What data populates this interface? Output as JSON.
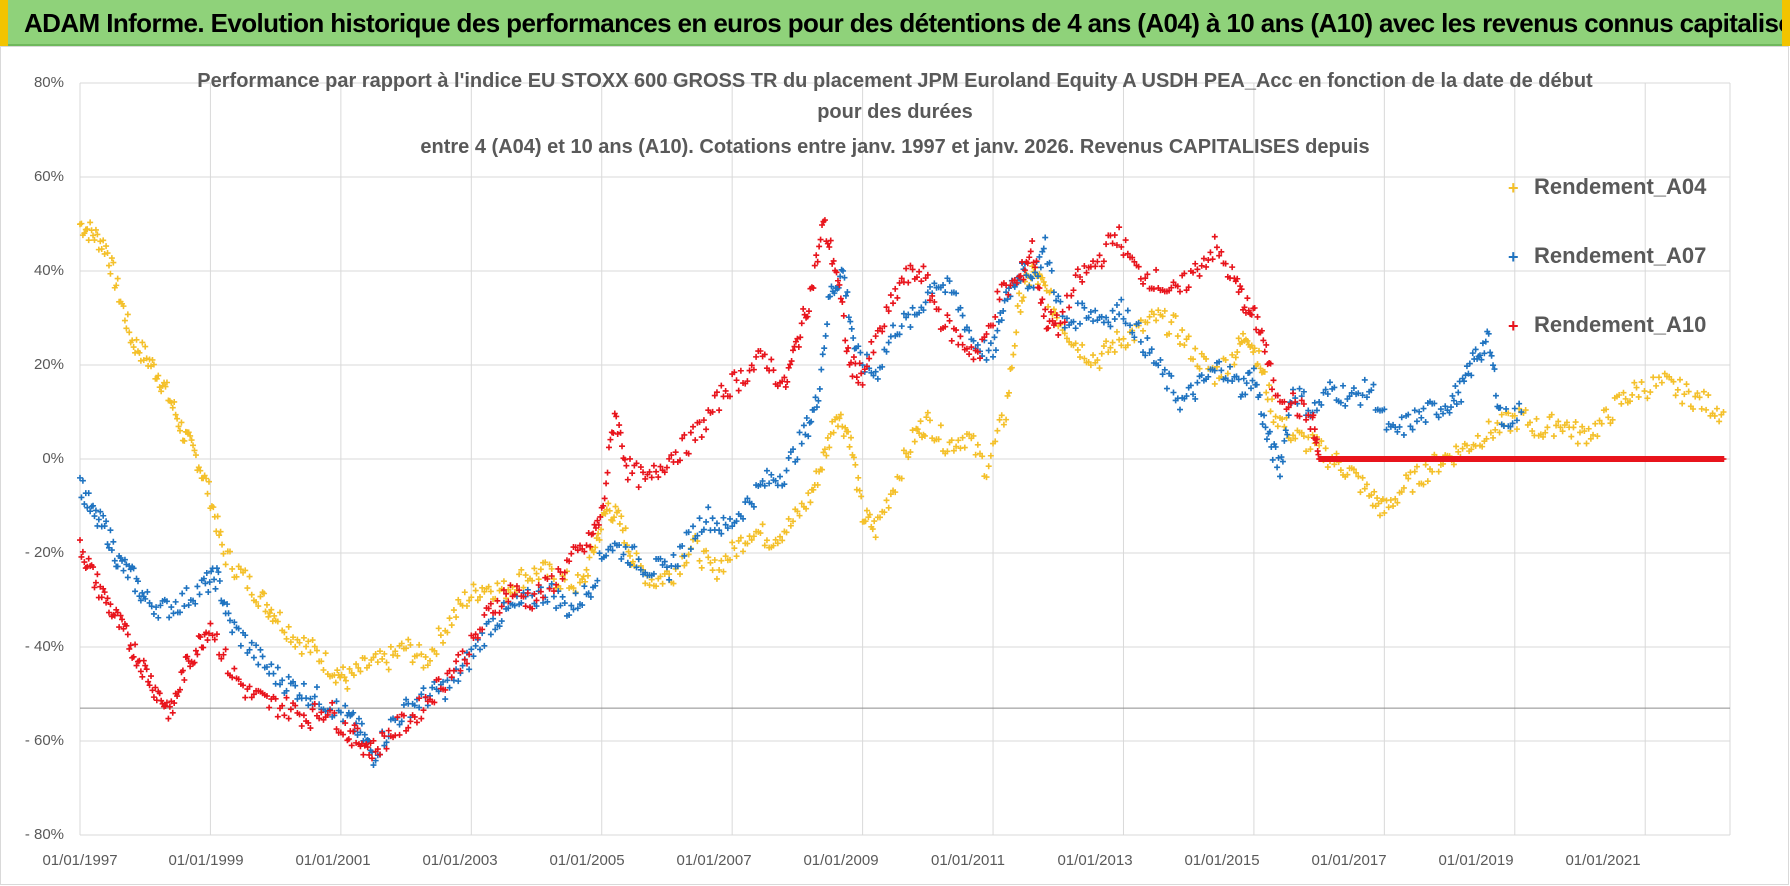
{
  "banner": {
    "title": "ADAM Informe. Evolution historique des performances en euros pour des détentions de 4 ans (A04) à 10 ans (A10) avec les revenus connus capitalisés"
  },
  "chart_data": {
    "type": "scatter",
    "title_lines": [
      "Performance par rapport à l'indice EU STOXX 600 GROSS TR  du placement JPM Euroland Equity A USDH PEA_Acc en fonction de la date de début",
      "pour des durées",
      "entre 4 (A04) et 10 ans (A10).  Cotations entre janv. 1997 et janv. 2026. Revenus CAPITALISES depuis"
    ],
    "xlabel": "",
    "ylabel": "",
    "x_ticks": [
      "01/01/1997",
      "01/01/1999",
      "01/01/2001",
      "01/01/2003",
      "01/01/2005",
      "01/01/2007",
      "01/01/2009",
      "01/01/2011",
      "01/01/2013",
      "01/01/2015",
      "01/01/2017",
      "01/01/2019",
      "01/01/2021"
    ],
    "xlim": [
      1997.0,
      2022.3
    ],
    "y_ticks": [
      "80%",
      "60%",
      "40%",
      "20%",
      "0%",
      "- 20%",
      "- 40%",
      "- 60%",
      "- 80%"
    ],
    "ylim": [
      -80,
      80
    ],
    "grid": true,
    "legend_position": "top-right",
    "series": [
      {
        "name": "Rendement_A04",
        "color": "#f4c02a",
        "marker": "+",
        "x": [
          1997.0,
          1997.2,
          1997.4,
          1997.6,
          1997.8,
          1998.0,
          1998.2,
          1998.4,
          1998.6,
          1998.8,
          1999.0,
          1999.2,
          1999.5,
          1999.8,
          2000.0,
          2000.3,
          2000.6,
          2000.9,
          2001.1,
          2001.4,
          2001.7,
          2002.0,
          2002.3,
          2002.6,
          2002.9,
          2003.2,
          2003.5,
          2003.8,
          2004.1,
          2004.4,
          2004.7,
          2004.9,
          2005.1,
          2005.3,
          2005.5,
          2005.8,
          2006.1,
          2006.4,
          2006.7,
          2007.0,
          2007.3,
          2007.6,
          2007.9,
          2008.2,
          2008.4,
          2008.6,
          2008.8,
          2009.0,
          2009.2,
          2009.5,
          2009.8,
          2010.0,
          2010.3,
          2010.6,
          2010.9,
          2011.2,
          2011.4,
          2011.6,
          2011.8,
          2012.0,
          2012.3,
          2012.6,
          2012.9,
          2013.2,
          2013.5,
          2013.8,
          2014.1,
          2014.4,
          2014.7,
          2014.9,
          2015.1,
          2015.3,
          2015.6,
          2015.9,
          2016.2,
          2016.5,
          2016.8,
          2017.0,
          2017.3,
          2017.6,
          2017.9,
          2018.2,
          2018.5,
          2018.8,
          2019.1,
          2019.4,
          2019.7,
          2020.0,
          2020.3,
          2020.6,
          2020.9,
          2021.3,
          2021.6,
          2021.9,
          2022.2
        ],
        "y": [
          50,
          48,
          45,
          35,
          25,
          22,
          18,
          12,
          5,
          0,
          -8,
          -20,
          -25,
          -30,
          -33,
          -38,
          -41,
          -45,
          -47,
          -44,
          -43,
          -40,
          -43,
          -36,
          -30,
          -27,
          -28,
          -25,
          -24,
          -26,
          -27,
          -18,
          -10,
          -14,
          -22,
          -26,
          -24,
          -18,
          -24,
          -20,
          -15,
          -17,
          -14,
          -8,
          0,
          10,
          5,
          -12,
          -15,
          -5,
          5,
          8,
          3,
          5,
          -2,
          10,
          33,
          40,
          36,
          30,
          24,
          21,
          25,
          27,
          30,
          28,
          22,
          18,
          22,
          27,
          20,
          10,
          5,
          3,
          0,
          -3,
          -8,
          -11,
          -6,
          -3,
          0,
          2,
          5,
          7,
          9,
          6,
          8,
          5,
          7,
          12,
          15,
          16,
          14,
          12,
          10
        ]
      },
      {
        "name": "Rendement_A07",
        "color": "#1f73c0",
        "marker": "+",
        "x": [
          1997.0,
          1997.2,
          1997.4,
          1997.6,
          1997.8,
          1998.0,
          1998.3,
          1998.6,
          1998.9,
          1999.1,
          1999.3,
          1999.6,
          1999.9,
          2000.2,
          2000.5,
          2000.8,
          2001.1,
          2001.3,
          2001.5,
          2001.8,
          2002.1,
          2002.4,
          2002.7,
          2003.0,
          2003.3,
          2003.6,
          2003.9,
          2004.2,
          2004.5,
          2004.8,
          2005.1,
          2005.4,
          2005.7,
          2006.0,
          2006.3,
          2006.6,
          2006.9,
          2007.2,
          2007.5,
          2007.8,
          2008.1,
          2008.3,
          2008.5,
          2008.7,
          2008.9,
          2009.2,
          2009.5,
          2009.8,
          2010.1,
          2010.4,
          2010.7,
          2011.0,
          2011.2,
          2011.4,
          2011.6,
          2011.8,
          2012.1,
          2012.4,
          2012.7,
          2013.0,
          2013.3,
          2013.6,
          2013.9,
          2014.2,
          2014.5,
          2014.8,
          2015.0,
          2015.2,
          2015.4,
          2015.6,
          2015.9,
          2016.2,
          2016.5,
          2016.8,
          2017.1,
          2017.4,
          2017.7,
          2018.0,
          2018.2,
          2018.4,
          2018.6,
          2018.8,
          2019.1
        ],
        "y": [
          -5,
          -12,
          -15,
          -22,
          -25,
          -30,
          -32,
          -30,
          -27,
          -25,
          -35,
          -40,
          -45,
          -48,
          -50,
          -52,
          -55,
          -58,
          -63,
          -56,
          -52,
          -50,
          -48,
          -42,
          -35,
          -32,
          -30,
          -28,
          -32,
          -28,
          -18,
          -20,
          -23,
          -24,
          -18,
          -12,
          -15,
          -10,
          -5,
          -3,
          5,
          12,
          35,
          40,
          22,
          18,
          28,
          30,
          38,
          35,
          25,
          22,
          35,
          40,
          38,
          45,
          28,
          32,
          30,
          32,
          25,
          18,
          12,
          16,
          20,
          15,
          18,
          5,
          -2,
          15,
          10,
          15,
          13,
          15,
          5,
          8,
          10,
          12,
          15,
          22,
          25,
          8,
          10
        ]
      },
      {
        "name": "Rendement_A10",
        "color": "#e8141c",
        "marker": "+",
        "x": [
          1997.0,
          1997.2,
          1997.4,
          1997.6,
          1997.8,
          1998.0,
          1998.2,
          1998.4,
          1998.6,
          1998.8,
          1999.0,
          1999.3,
          1999.6,
          1999.9,
          2000.2,
          2000.5,
          2000.8,
          2001.1,
          2001.3,
          2001.5,
          2001.8,
          2002.1,
          2002.4,
          2002.7,
          2003.0,
          2003.3,
          2003.6,
          2003.9,
          2004.2,
          2004.5,
          2004.8,
          2005.0,
          2005.2,
          2005.4,
          2005.7,
          2006.0,
          2006.3,
          2006.6,
          2006.9,
          2007.2,
          2007.5,
          2007.8,
          2008.0,
          2008.2,
          2008.4,
          2008.6,
          2008.8,
          2009.0,
          2009.3,
          2009.6,
          2009.9,
          2010.2,
          2010.5,
          2010.8,
          2011.1,
          2011.4,
          2011.6,
          2011.8,
          2012.0,
          2012.3,
          2012.6,
          2012.9,
          2013.2,
          2013.5,
          2013.8,
          2014.1,
          2014.4,
          2014.7,
          2014.9,
          2015.1,
          2015.3,
          2015.6,
          2015.9,
          2016.0,
          2016.3,
          2016.7,
          2017.0,
          2017.4,
          2017.8,
          2018.2,
          2018.6,
          2019.0,
          2019.4,
          2019.8,
          2020.2,
          2020.6,
          2021.0,
          2021.4,
          2021.8,
          2022.2
        ],
        "y": [
          -18,
          -25,
          -30,
          -35,
          -40,
          -45,
          -50,
          -54,
          -45,
          -40,
          -35,
          -45,
          -50,
          -52,
          -53,
          -55,
          -53,
          -58,
          -60,
          -62,
          -58,
          -55,
          -50,
          -45,
          -40,
          -32,
          -28,
          -30,
          -27,
          -22,
          -18,
          -12,
          10,
          -2,
          -5,
          0,
          3,
          8,
          15,
          18,
          22,
          15,
          25,
          35,
          50,
          40,
          20,
          18,
          28,
          38,
          40,
          30,
          25,
          22,
          35,
          38,
          45,
          30,
          28,
          38,
          42,
          48,
          40,
          38,
          35,
          40,
          45,
          38,
          32,
          28,
          15,
          12,
          8,
          0,
          0,
          0,
          0,
          0,
          0,
          0,
          0,
          0,
          0,
          0,
          0,
          0,
          0,
          0,
          0,
          0
        ]
      }
    ]
  }
}
